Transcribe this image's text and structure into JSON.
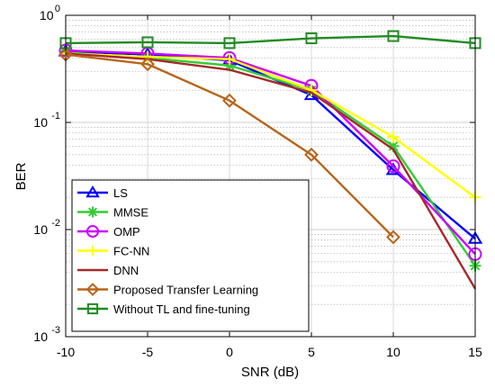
{
  "chart_data": {
    "type": "line",
    "title": "",
    "xlabel": "SNR (dB)",
    "ylabel": "BER",
    "xlim": [
      -10,
      15
    ],
    "ylim": [
      0.001,
      1
    ],
    "yscale": "log",
    "grid": true,
    "legend_position": "bottom-left",
    "x_ticks": [
      "-10",
      "-5",
      "0",
      "5",
      "10",
      "15"
    ],
    "y_ticks": [
      {
        "base": "10",
        "exp": "0"
      },
      {
        "base": "10",
        "exp": "-1"
      },
      {
        "base": "10",
        "exp": "-2"
      },
      {
        "base": "10",
        "exp": "-3"
      }
    ],
    "series": [
      {
        "name": "LS",
        "color": "#0000ff",
        "marker": "triangle",
        "x": [
          -10,
          -5,
          0,
          5,
          10,
          15
        ],
        "values": [
          0.46,
          0.43,
          0.38,
          0.18,
          0.036,
          0.0082
        ]
      },
      {
        "name": "MMSE",
        "color": "#33cc33",
        "marker": "asterisk",
        "x": [
          -10,
          -5,
          0,
          5,
          10,
          15
        ],
        "values": [
          0.45,
          0.4,
          0.34,
          0.2,
          0.06,
          0.0046
        ]
      },
      {
        "name": "OMP",
        "color": "#cc00ff",
        "marker": "circle",
        "x": [
          -10,
          -5,
          0,
          5,
          10,
          15
        ],
        "values": [
          0.47,
          0.44,
          0.4,
          0.22,
          0.039,
          0.0059
        ]
      },
      {
        "name": "FC-NN",
        "color": "#ffff00",
        "marker": "plus",
        "x": [
          -10,
          -5,
          0,
          5,
          10,
          15
        ],
        "values": [
          0.44,
          0.41,
          0.39,
          0.2,
          0.073,
          0.02
        ]
      },
      {
        "name": "DNN",
        "color": "#a52a2a",
        "marker": "none",
        "x": [
          -10,
          -5,
          0,
          5,
          10,
          15
        ],
        "values": [
          0.44,
          0.39,
          0.31,
          0.19,
          0.056,
          0.0028
        ]
      },
      {
        "name": "Proposed Transfer Learning",
        "color": "#b8651a",
        "marker": "diamond",
        "x": [
          -10,
          -5,
          0,
          5,
          10,
          15
        ],
        "values": [
          0.43,
          0.35,
          0.16,
          0.05,
          0.0085,
          null
        ]
      },
      {
        "name": "Without TL and fine-tuning",
        "color": "#228b22",
        "marker": "square",
        "x": [
          -10,
          -5,
          0,
          5,
          10,
          15
        ],
        "values": [
          0.55,
          0.56,
          0.55,
          0.61,
          0.64,
          0.55
        ]
      }
    ]
  }
}
